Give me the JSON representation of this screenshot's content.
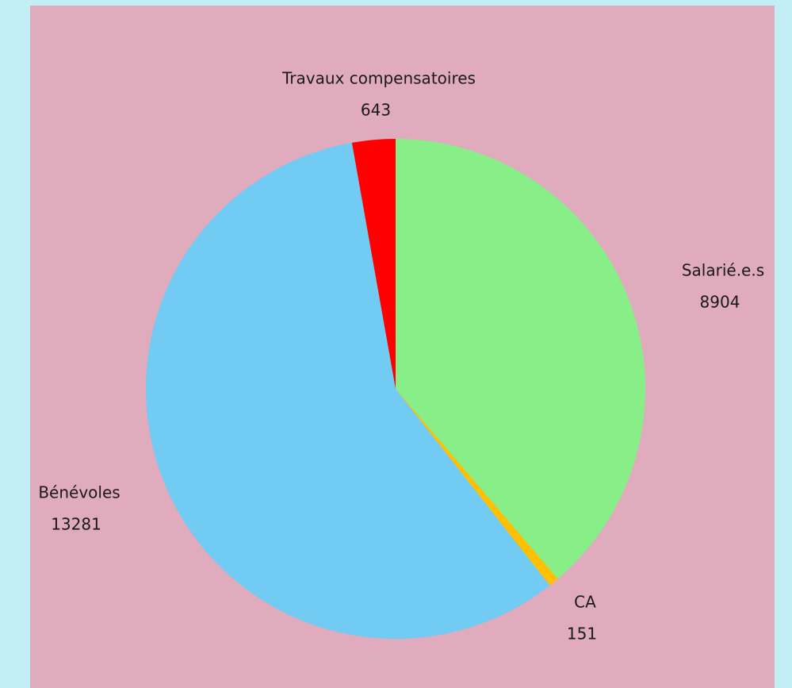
{
  "chart_data": {
    "type": "pie",
    "categories": [
      "Salarié.e.s",
      "CA",
      "Bénévoles",
      "Travaux compensatoires"
    ],
    "values": [
      8904,
      151,
      13281,
      643
    ],
    "colors": [
      "#88ef88",
      "#ffc000",
      "#72cbf2",
      "#ff0000"
    ]
  }
}
